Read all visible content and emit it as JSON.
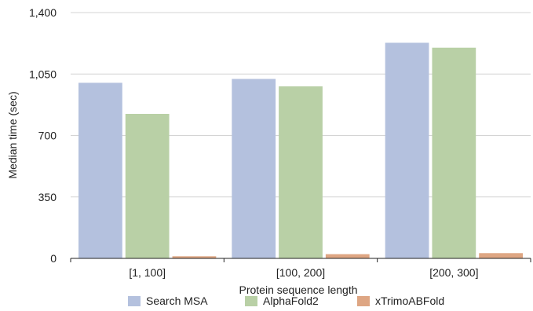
{
  "chart_data": {
    "type": "bar",
    "title": "",
    "xlabel": "Protein sequence length",
    "ylabel": "Median time (sec)",
    "categories": [
      "[1, 100]",
      "[100, 200]",
      "[200, 300]"
    ],
    "ylim": [
      0,
      1400
    ],
    "yticks": [
      0,
      350,
      700,
      1050,
      1400
    ],
    "ytick_labels": [
      "0",
      "350",
      "700",
      "1,050",
      "1,400"
    ],
    "grid": true,
    "legend_position": "bottom",
    "series": [
      {
        "name": "Search MSA",
        "color": "#b4c1de",
        "values": [
          1000,
          1022,
          1228
        ]
      },
      {
        "name": "AlphaFold2",
        "color": "#b9d0a6",
        "values": [
          823,
          980,
          1200
        ]
      },
      {
        "name": "xTrimoABFold",
        "color": "#dea683",
        "values": [
          12,
          24,
          30
        ]
      }
    ]
  }
}
